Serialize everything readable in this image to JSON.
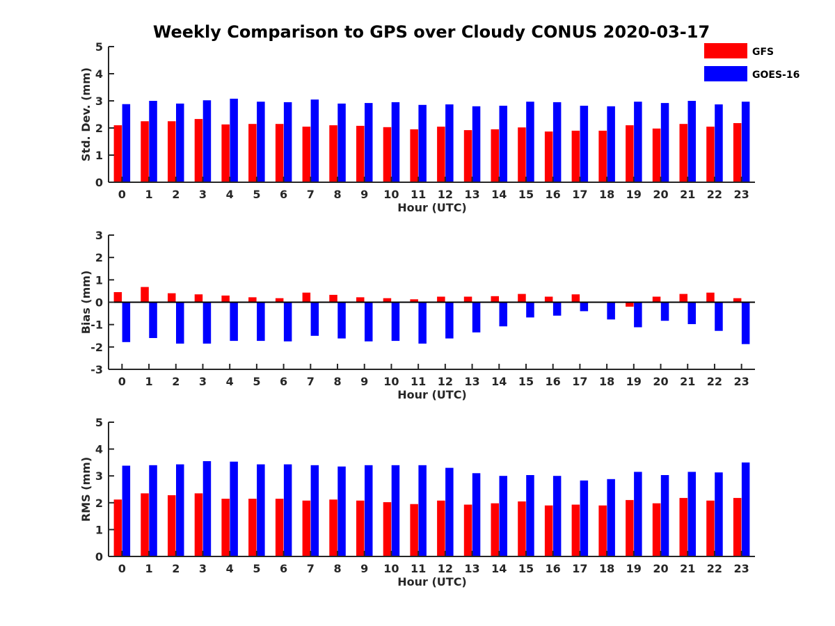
{
  "title": "Weekly Comparison to GPS over Cloudy CONUS 2020-03-17",
  "legend": [
    {
      "label": "GFS",
      "color": "#ff0000"
    },
    {
      "label": "GOES-16",
      "color": "#0000ff"
    }
  ],
  "chart_data": [
    {
      "type": "bar",
      "xlabel": "Hour (UTC)",
      "ylabel": "Std. Dev. (mm)",
      "ylim": [
        0,
        5
      ],
      "yticks": [
        0,
        1,
        2,
        3,
        4,
        5
      ],
      "categories": [
        "0",
        "1",
        "2",
        "3",
        "4",
        "5",
        "6",
        "7",
        "8",
        "9",
        "10",
        "11",
        "12",
        "13",
        "14",
        "15",
        "16",
        "17",
        "18",
        "19",
        "20",
        "21",
        "22",
        "23"
      ],
      "series": [
        {
          "name": "GFS",
          "color": "#ff0000",
          "values": [
            2.1,
            2.25,
            2.25,
            2.33,
            2.13,
            2.15,
            2.15,
            2.05,
            2.1,
            2.08,
            2.03,
            1.95,
            2.05,
            1.92,
            1.95,
            2.02,
            1.87,
            1.9,
            1.9,
            2.1,
            1.98,
            2.15,
            2.05,
            2.18
          ]
        },
        {
          "name": "GOES-16",
          "color": "#0000ff",
          "values": [
            2.88,
            3.0,
            2.9,
            3.02,
            3.08,
            2.97,
            2.95,
            3.05,
            2.9,
            2.92,
            2.95,
            2.85,
            2.87,
            2.8,
            2.82,
            2.97,
            2.95,
            2.82,
            2.8,
            2.97,
            2.92,
            3.0,
            2.87,
            2.97
          ]
        }
      ]
    },
    {
      "type": "bar",
      "xlabel": "Hour (UTC)",
      "ylabel": "Bias (mm)",
      "ylim": [
        -3,
        3
      ],
      "yticks": [
        -3,
        -2,
        -1,
        0,
        1,
        2,
        3
      ],
      "categories": [
        "0",
        "1",
        "2",
        "3",
        "4",
        "5",
        "6",
        "7",
        "8",
        "9",
        "10",
        "11",
        "12",
        "13",
        "14",
        "15",
        "16",
        "17",
        "18",
        "19",
        "20",
        "21",
        "22",
        "23"
      ],
      "series": [
        {
          "name": "GFS",
          "color": "#ff0000",
          "values": [
            0.45,
            0.68,
            0.4,
            0.35,
            0.3,
            0.22,
            0.18,
            0.43,
            0.33,
            0.22,
            0.18,
            0.13,
            0.25,
            0.25,
            0.27,
            0.37,
            0.25,
            0.35,
            -0.03,
            -0.2,
            0.25,
            0.37,
            0.43,
            0.18
          ]
        },
        {
          "name": "GOES-16",
          "color": "#0000ff",
          "values": [
            -1.78,
            -1.6,
            -1.85,
            -1.85,
            -1.73,
            -1.73,
            -1.75,
            -1.5,
            -1.62,
            -1.75,
            -1.73,
            -1.85,
            -1.62,
            -1.35,
            -1.08,
            -0.68,
            -0.6,
            -0.4,
            -0.77,
            -1.12,
            -0.83,
            -0.98,
            -1.28,
            -1.87
          ]
        }
      ]
    },
    {
      "type": "bar",
      "xlabel": "Hour (UTC)",
      "ylabel": "RMS (mm)",
      "ylim": [
        0,
        5
      ],
      "yticks": [
        0,
        1,
        2,
        3,
        4,
        5
      ],
      "categories": [
        "0",
        "1",
        "2",
        "3",
        "4",
        "5",
        "6",
        "7",
        "8",
        "9",
        "10",
        "11",
        "12",
        "13",
        "14",
        "15",
        "16",
        "17",
        "18",
        "19",
        "20",
        "21",
        "22",
        "23"
      ],
      "series": [
        {
          "name": "GFS",
          "color": "#ff0000",
          "values": [
            2.12,
            2.35,
            2.28,
            2.35,
            2.15,
            2.15,
            2.15,
            2.08,
            2.12,
            2.08,
            2.02,
            1.95,
            2.08,
            1.93,
            1.98,
            2.05,
            1.9,
            1.93,
            1.9,
            2.1,
            1.98,
            2.18,
            2.08,
            2.18
          ]
        },
        {
          "name": "GOES-16",
          "color": "#0000ff",
          "values": [
            3.38,
            3.4,
            3.43,
            3.55,
            3.53,
            3.43,
            3.43,
            3.4,
            3.35,
            3.4,
            3.4,
            3.4,
            3.3,
            3.1,
            3.0,
            3.03,
            3.0,
            2.83,
            2.88,
            3.15,
            3.03,
            3.15,
            3.13,
            3.5
          ]
        }
      ]
    }
  ]
}
